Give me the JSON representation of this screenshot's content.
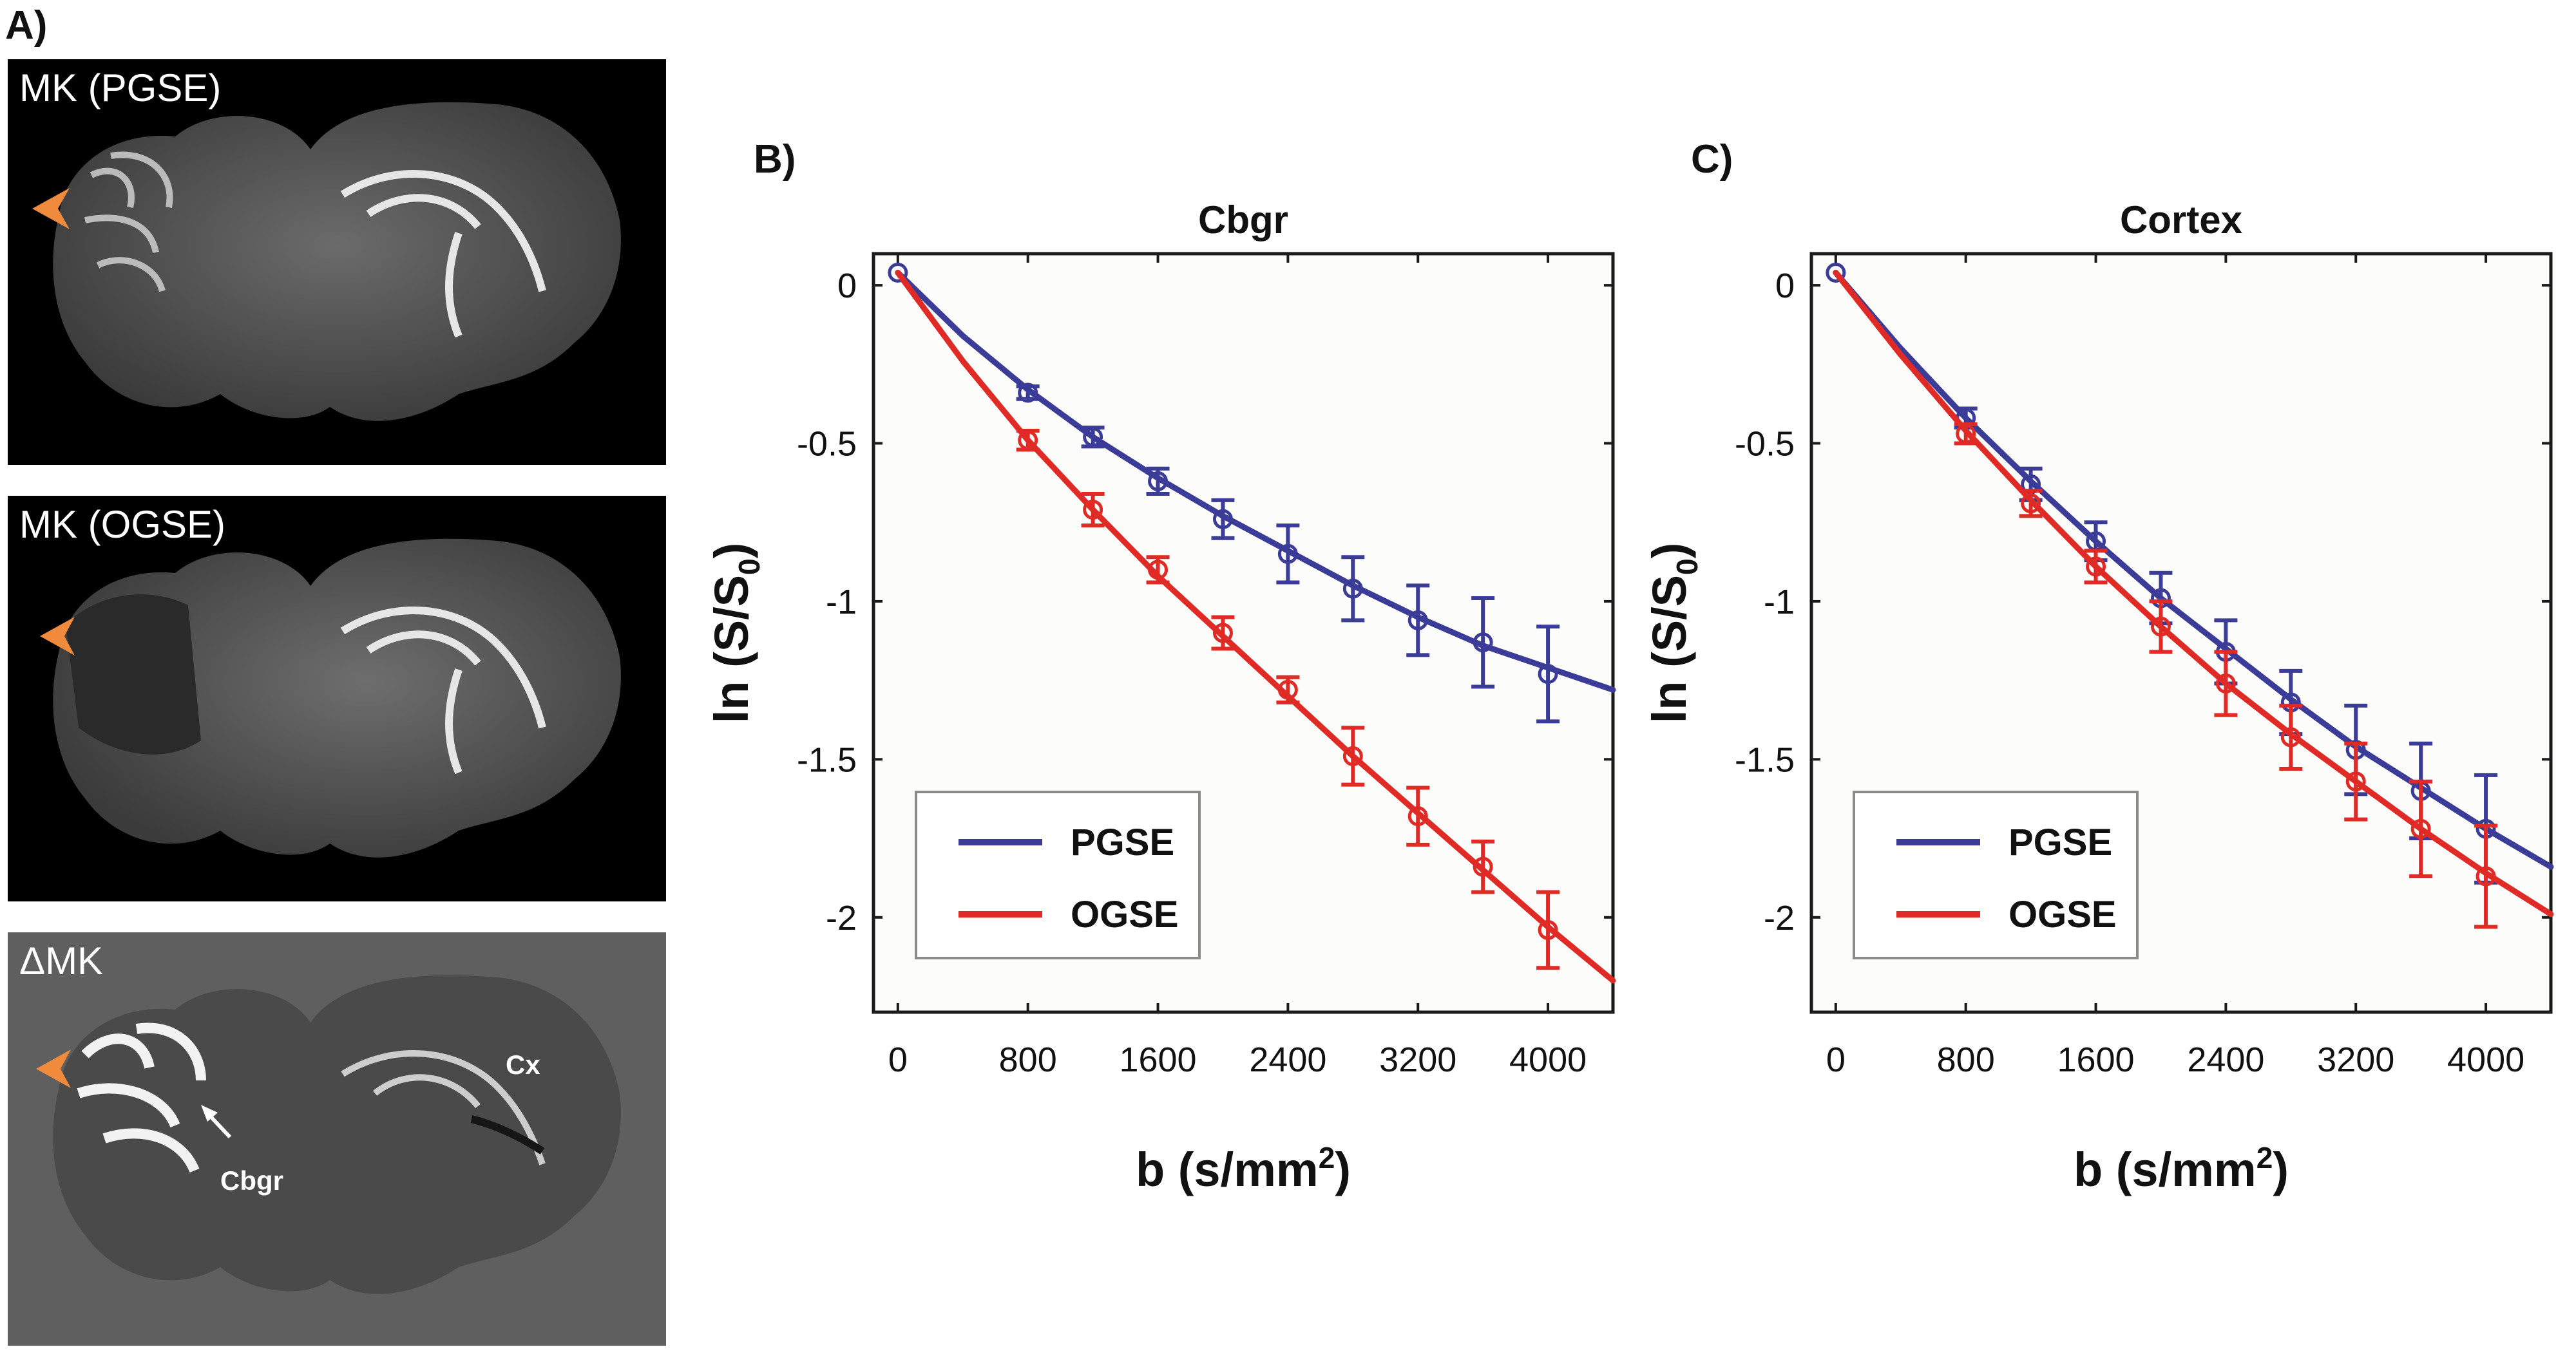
{
  "panels": {
    "a_letter": "A)",
    "b_letter": "B)",
    "c_letter": "C)",
    "mri_top_label": "MK (PGSE)",
    "mri_mid_label": "MK (OGSE)",
    "mri_bottom_label": "ΔMK",
    "mri_bottom_annotations": {
      "cortex": "Cx",
      "cerebellum": "Cbgr"
    }
  },
  "colors": {
    "pgse": "#3b3b98",
    "ogse": "#e02a26",
    "arrowhead": "#f08a3c",
    "plot_bg": "#fcfcfa"
  },
  "chart_data": [
    {
      "type": "line",
      "title": "Cbgr",
      "xlabel": "b (s/mm2)",
      "ylabel": "ln (S/S0)",
      "xlim": [
        -150,
        4400
      ],
      "ylim": [
        -2.3,
        0.1
      ],
      "xticks": [
        0,
        800,
        1600,
        2400,
        3200,
        4000
      ],
      "yticks": [
        0,
        -0.5,
        -1,
        -1.5,
        -2
      ],
      "ytick_labels": [
        "0",
        "-0.5",
        "-1",
        "-1.5",
        "-2"
      ],
      "legend": {
        "position": "bottom-left",
        "entries": [
          "PGSE",
          "OGSE"
        ]
      },
      "series": [
        {
          "name": "PGSE",
          "color": "#3b3b98",
          "x": [
            0,
            800,
            1200,
            1600,
            2000,
            2400,
            2800,
            3200,
            3600,
            4000
          ],
          "y": [
            0.04,
            -0.34,
            -0.48,
            -0.62,
            -0.74,
            -0.85,
            -0.96,
            -1.06,
            -1.13,
            -1.23
          ],
          "err": [
            0,
            0.02,
            0.03,
            0.04,
            0.06,
            0.09,
            0.1,
            0.11,
            0.14,
            0.15
          ],
          "fit": [
            [
              0,
              0.04
            ],
            [
              400,
              -0.16
            ],
            [
              800,
              -0.33
            ],
            [
              1200,
              -0.48
            ],
            [
              1600,
              -0.61
            ],
            [
              2000,
              -0.73
            ],
            [
              2400,
              -0.84
            ],
            [
              2800,
              -0.95
            ],
            [
              3200,
              -1.05
            ],
            [
              3600,
              -1.14
            ],
            [
              4000,
              -1.21
            ],
            [
              4400,
              -1.28
            ]
          ]
        },
        {
          "name": "OGSE",
          "color": "#e02a26",
          "x": [
            800,
            1200,
            1600,
            2000,
            2400,
            2800,
            3200,
            3600,
            4000
          ],
          "y": [
            -0.49,
            -0.71,
            -0.9,
            -1.1,
            -1.28,
            -1.49,
            -1.68,
            -1.84,
            -2.04
          ],
          "err": [
            0.03,
            0.05,
            0.04,
            0.05,
            0.04,
            0.09,
            0.09,
            0.08,
            0.12
          ],
          "fit": [
            [
              0,
              0.04
            ],
            [
              400,
              -0.24
            ],
            [
              800,
              -0.49
            ],
            [
              1200,
              -0.71
            ],
            [
              1600,
              -0.92
            ],
            [
              2000,
              -1.11
            ],
            [
              2400,
              -1.3
            ],
            [
              2800,
              -1.49
            ],
            [
              3200,
              -1.67
            ],
            [
              3600,
              -1.85
            ],
            [
              4000,
              -2.03
            ],
            [
              4400,
              -2.2
            ]
          ]
        }
      ]
    },
    {
      "type": "line",
      "title": "Cortex",
      "xlabel": "b (s/mm2)",
      "ylabel": "ln (S/S0)",
      "xlim": [
        -150,
        4400
      ],
      "ylim": [
        -2.3,
        0.1
      ],
      "xticks": [
        0,
        800,
        1600,
        2400,
        3200,
        4000
      ],
      "yticks": [
        0,
        -0.5,
        -1,
        -1.5,
        -2
      ],
      "ytick_labels": [
        "0",
        "-0.5",
        "-1",
        "-1.5",
        "-2"
      ],
      "legend": {
        "position": "bottom-left",
        "entries": [
          "PGSE",
          "OGSE"
        ]
      },
      "series": [
        {
          "name": "PGSE",
          "color": "#3b3b98",
          "x": [
            0,
            800,
            1200,
            1600,
            2000,
            2400,
            2800,
            3200,
            3600,
            4000
          ],
          "y": [
            0.04,
            -0.42,
            -0.63,
            -0.81,
            -0.99,
            -1.16,
            -1.32,
            -1.47,
            -1.6,
            -1.72
          ],
          "err": [
            0,
            0.03,
            0.05,
            0.06,
            0.08,
            0.1,
            0.1,
            0.14,
            0.15,
            0.17
          ],
          "fit": [
            [
              0,
              0.04
            ],
            [
              400,
              -0.2
            ],
            [
              800,
              -0.42
            ],
            [
              1200,
              -0.62
            ],
            [
              1600,
              -0.81
            ],
            [
              2000,
              -0.99
            ],
            [
              2400,
              -1.15
            ],
            [
              2800,
              -1.31
            ],
            [
              3200,
              -1.46
            ],
            [
              3600,
              -1.59
            ],
            [
              4000,
              -1.72
            ],
            [
              4400,
              -1.84
            ]
          ]
        },
        {
          "name": "OGSE",
          "color": "#e02a26",
          "x": [
            800,
            1200,
            1600,
            2000,
            2400,
            2800,
            3200,
            3600,
            4000
          ],
          "y": [
            -0.47,
            -0.69,
            -0.89,
            -1.08,
            -1.26,
            -1.43,
            -1.57,
            -1.72,
            -1.87
          ],
          "err": [
            0.03,
            0.04,
            0.05,
            0.08,
            0.1,
            0.1,
            0.12,
            0.15,
            0.16
          ],
          "fit": [
            [
              0,
              0.04
            ],
            [
              400,
              -0.22
            ],
            [
              800,
              -0.46
            ],
            [
              1200,
              -0.68
            ],
            [
              1600,
              -0.89
            ],
            [
              2000,
              -1.08
            ],
            [
              2400,
              -1.26
            ],
            [
              2800,
              -1.42
            ],
            [
              3200,
              -1.57
            ],
            [
              3600,
              -1.72
            ],
            [
              4000,
              -1.86
            ],
            [
              4400,
              -1.99
            ]
          ]
        }
      ]
    }
  ]
}
